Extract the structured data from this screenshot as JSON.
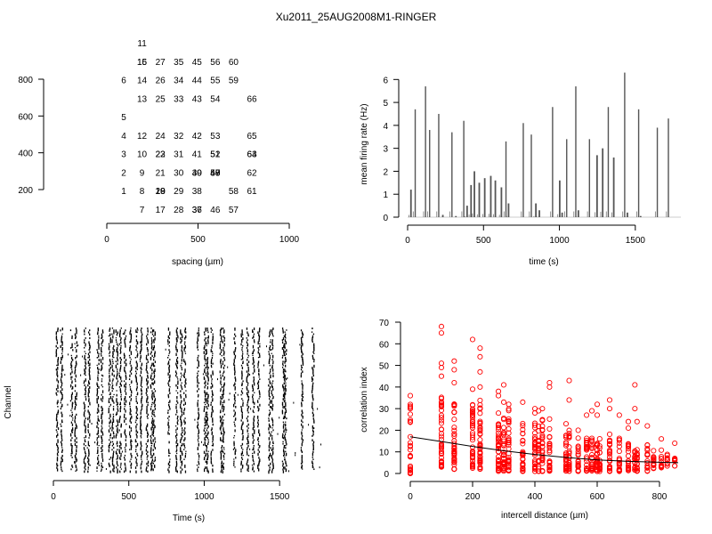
{
  "title": "Xu2011_25AUG2008M1-RINGER",
  "chart_data": [
    {
      "type": "scatter",
      "panel": "electrode-layout",
      "xlabel": "spacing (µm)",
      "ylabel": "",
      "xlim": [
        0,
        1000
      ],
      "ylim": [
        0,
        800
      ],
      "xticks": [
        0,
        500,
        1000
      ],
      "yticks": [
        200,
        400,
        600,
        800
      ],
      "points": [
        {
          "x": 0,
          "y": 800,
          "label": "1"
        },
        {
          "x": 0,
          "y": 700,
          "label": "2"
        },
        {
          "x": 0,
          "y": 600,
          "label": "3"
        },
        {
          "x": 0,
          "y": 500,
          "label": "4"
        },
        {
          "x": 0,
          "y": 400,
          "label": "5"
        },
        {
          "x": 0,
          "y": 200,
          "label": "6"
        },
        {
          "x": 100,
          "y": 900,
          "label": "7"
        },
        {
          "x": 100,
          "y": 800,
          "label": "8"
        },
        {
          "x": 100,
          "y": 700,
          "label": "9"
        },
        {
          "x": 100,
          "y": 600,
          "label": "10"
        },
        {
          "x": 100,
          "y": 0,
          "label": "11"
        },
        {
          "x": 100,
          "y": 500,
          "label": "12"
        },
        {
          "x": 100,
          "y": 300,
          "label": "13"
        },
        {
          "x": 100,
          "y": 200,
          "label": "14"
        },
        {
          "x": 100,
          "y": 100,
          "label": "15"
        },
        {
          "x": 100,
          "y": 100,
          "label": "16"
        },
        {
          "x": 200,
          "y": 900,
          "label": "17"
        },
        {
          "x": 200,
          "y": 800,
          "label": "18"
        },
        {
          "x": 200,
          "y": 800,
          "label": "19"
        },
        {
          "x": 200,
          "y": 800,
          "label": "20"
        },
        {
          "x": 200,
          "y": 700,
          "label": "21"
        },
        {
          "x": 200,
          "y": 600,
          "label": "22"
        },
        {
          "x": 200,
          "y": 600,
          "label": "23"
        },
        {
          "x": 200,
          "y": 500,
          "label": "24"
        },
        {
          "x": 200,
          "y": 300,
          "label": "25"
        },
        {
          "x": 200,
          "y": 200,
          "label": "26"
        },
        {
          "x": 200,
          "y": 100,
          "label": "27"
        },
        {
          "x": 300,
          "y": 900,
          "label": "28"
        },
        {
          "x": 300,
          "y": 800,
          "label": "29"
        },
        {
          "x": 300,
          "y": 700,
          "label": "30"
        },
        {
          "x": 300,
          "y": 600,
          "label": "31"
        },
        {
          "x": 300,
          "y": 500,
          "label": "32"
        },
        {
          "x": 300,
          "y": 300,
          "label": "33"
        },
        {
          "x": 300,
          "y": 200,
          "label": "34"
        },
        {
          "x": 300,
          "y": 100,
          "label": "35"
        },
        {
          "x": 400,
          "y": 900,
          "label": "36"
        },
        {
          "x": 400,
          "y": 900,
          "label": "37"
        },
        {
          "x": 400,
          "y": 800,
          "label": "38"
        },
        {
          "x": 400,
          "y": 700,
          "label": "39"
        },
        {
          "x": 400,
          "y": 700,
          "label": "40"
        },
        {
          "x": 400,
          "y": 600,
          "label": "41"
        },
        {
          "x": 400,
          "y": 500,
          "label": "42"
        },
        {
          "x": 400,
          "y": 300,
          "label": "43"
        },
        {
          "x": 400,
          "y": 200,
          "label": "44"
        },
        {
          "x": 400,
          "y": 100,
          "label": "45"
        },
        {
          "x": 500,
          "y": 900,
          "label": "46"
        },
        {
          "x": 500,
          "y": 700,
          "label": "47"
        },
        {
          "x": 500,
          "y": 700,
          "label": "48"
        },
        {
          "x": 500,
          "y": 700,
          "label": "49"
        },
        {
          "x": 500,
          "y": 700,
          "label": "50"
        },
        {
          "x": 500,
          "y": 600,
          "label": "51"
        },
        {
          "x": 500,
          "y": 600,
          "label": "52"
        },
        {
          "x": 500,
          "y": 500,
          "label": "53"
        },
        {
          "x": 500,
          "y": 300,
          "label": "54"
        },
        {
          "x": 500,
          "y": 200,
          "label": "55"
        },
        {
          "x": 500,
          "y": 100,
          "label": "56"
        },
        {
          "x": 600,
          "y": 900,
          "label": "57"
        },
        {
          "x": 600,
          "y": 800,
          "label": "58"
        },
        {
          "x": 600,
          "y": 200,
          "label": "59"
        },
        {
          "x": 600,
          "y": 100,
          "label": "60"
        },
        {
          "x": 700,
          "y": 800,
          "label": "61"
        },
        {
          "x": 700,
          "y": 700,
          "label": "62"
        },
        {
          "x": 700,
          "y": 600,
          "label": "63"
        },
        {
          "x": 700,
          "y": 600,
          "label": "64"
        },
        {
          "x": 700,
          "y": 500,
          "label": "65"
        },
        {
          "x": 700,
          "y": 300,
          "label": "66"
        }
      ]
    },
    {
      "type": "bar",
      "panel": "firing-rate",
      "xlabel": "time (s)",
      "ylabel": "mean firing rate (Hz)",
      "xlim": [
        0,
        1800
      ],
      "ylim": [
        0,
        6.4
      ],
      "xticks": [
        0,
        500,
        1000,
        1500
      ],
      "yticks": [
        0,
        1,
        2,
        3,
        4,
        5,
        6
      ],
      "x": [
        22,
        50,
        118,
        145,
        205,
        232,
        292,
        318,
        370,
        392,
        418,
        440,
        472,
        508,
        548,
        578,
        618,
        648,
        665,
        762,
        815,
        845,
        868,
        955,
        1002,
        1018,
        1048,
        1108,
        1125,
        1198,
        1248,
        1285,
        1322,
        1358,
        1430,
        1448,
        1522,
        1535,
        1645,
        1718
      ],
      "values": [
        1.2,
        4.7,
        5.7,
        3.8,
        4.5,
        0.1,
        3.7,
        0.05,
        4.2,
        0.5,
        1.4,
        2.0,
        1.5,
        1.7,
        1.8,
        1.6,
        1.3,
        3.3,
        0.6,
        4.1,
        3.6,
        0.6,
        0.3,
        4.8,
        1.6,
        0.2,
        3.4,
        5.7,
        0.3,
        3.4,
        2.7,
        3.0,
        4.8,
        2.6,
        6.3,
        0.2,
        4.7,
        0.05,
        3.9,
        4.3
      ]
    },
    {
      "type": "scatter",
      "panel": "spike-raster",
      "xlabel": "Time (s)",
      "ylabel": "Channel",
      "xlim": [
        0,
        1800
      ],
      "xticks": [
        0,
        500,
        1000,
        1500
      ],
      "burst_times": [
        22,
        50,
        118,
        145,
        205,
        232,
        292,
        318,
        370,
        392,
        418,
        440,
        472,
        508,
        548,
        578,
        618,
        648,
        665,
        762,
        815,
        845,
        868,
        955,
        1002,
        1018,
        1048,
        1108,
        1125,
        1198,
        1248,
        1285,
        1322,
        1358,
        1430,
        1448,
        1522,
        1535,
        1645,
        1718
      ]
    },
    {
      "type": "scatter",
      "panel": "correlation",
      "xlabel": "intercell distance (µm)",
      "ylabel": "correlation index",
      "xlim": [
        0,
        860
      ],
      "ylim": [
        0,
        70
      ],
      "xticks": [
        0,
        200,
        400,
        600,
        800
      ],
      "yticks": [
        0,
        10,
        20,
        30,
        40,
        50,
        60,
        70
      ],
      "point_color": "#ff0000",
      "fit_color": "#000000",
      "fit_curve": [
        [
          0,
          17.0
        ],
        [
          100,
          14.8
        ],
        [
          200,
          12.5
        ],
        [
          300,
          10.5
        ],
        [
          400,
          8.8
        ],
        [
          500,
          7.4
        ],
        [
          600,
          6.3
        ],
        [
          700,
          5.6
        ],
        [
          800,
          5.2
        ],
        [
          860,
          5.0
        ]
      ],
      "columns": [
        {
          "x": 0,
          "low": 0,
          "high": 36,
          "n": 22,
          "outliers": [
            0,
            2,
            24,
            30,
            36
          ]
        },
        {
          "x": 100,
          "low": 3,
          "high": 38,
          "n": 40,
          "outliers": [
            45,
            49,
            51,
            65,
            68
          ]
        },
        {
          "x": 141,
          "low": 2,
          "high": 33,
          "n": 40,
          "outliers": [
            42,
            48,
            52
          ]
        },
        {
          "x": 200,
          "low": 2,
          "high": 32,
          "n": 36,
          "outliers": [
            39,
            62
          ]
        },
        {
          "x": 224,
          "low": 2,
          "high": 34,
          "n": 40,
          "outliers": [
            40,
            47,
            54,
            58
          ]
        },
        {
          "x": 283,
          "low": 1,
          "high": 30,
          "n": 36,
          "outliers": [
            36,
            38
          ]
        },
        {
          "x": 300,
          "low": 1,
          "high": 28,
          "n": 36,
          "outliers": [
            33,
            41
          ]
        },
        {
          "x": 316,
          "low": 1,
          "high": 30,
          "n": 30,
          "outliers": [
            32
          ]
        },
        {
          "x": 361,
          "low": 1,
          "high": 26,
          "n": 30,
          "outliers": [
            33
          ]
        },
        {
          "x": 400,
          "low": 1,
          "high": 24,
          "n": 28,
          "outliers": [
            28,
            30
          ]
        },
        {
          "x": 412,
          "low": 1,
          "high": 22,
          "n": 24,
          "outliers": [
            29
          ]
        },
        {
          "x": 424,
          "low": 1,
          "high": 25,
          "n": 26,
          "outliers": [
            30
          ]
        },
        {
          "x": 447,
          "low": 1,
          "high": 26,
          "n": 28,
          "outliers": [
            40,
            42
          ]
        },
        {
          "x": 500,
          "low": 1,
          "high": 18,
          "n": 26,
          "outliers": [
            23
          ]
        },
        {
          "x": 510,
          "low": 1,
          "high": 20,
          "n": 24,
          "outliers": [
            34,
            43
          ]
        },
        {
          "x": 539,
          "low": 1,
          "high": 17,
          "n": 22,
          "outliers": [
            20
          ]
        },
        {
          "x": 566,
          "low": 1,
          "high": 18,
          "n": 22,
          "outliers": [
            27
          ]
        },
        {
          "x": 583,
          "low": 1,
          "high": 18,
          "n": 22,
          "outliers": [
            29
          ]
        },
        {
          "x": 600,
          "low": 1,
          "high": 18,
          "n": 24,
          "outliers": [
            27,
            32
          ]
        },
        {
          "x": 608,
          "low": 1,
          "high": 17,
          "n": 20,
          "outliers": []
        },
        {
          "x": 640,
          "low": 1,
          "high": 20,
          "n": 22,
          "outliers": [
            30,
            34
          ]
        },
        {
          "x": 671,
          "low": 1,
          "high": 17,
          "n": 20,
          "outliers": [
            27
          ]
        },
        {
          "x": 700,
          "low": 1,
          "high": 16,
          "n": 20,
          "outliers": [
            21,
            24
          ]
        },
        {
          "x": 721,
          "low": 1,
          "high": 14,
          "n": 20,
          "outliers": [
            30,
            41
          ]
        },
        {
          "x": 728,
          "low": 1,
          "high": 12,
          "n": 18,
          "outliers": [
            24
          ]
        },
        {
          "x": 761,
          "low": 1,
          "high": 14,
          "n": 16,
          "outliers": [
            22
          ]
        },
        {
          "x": 781,
          "low": 2,
          "high": 12,
          "n": 14,
          "outliers": []
        },
        {
          "x": 806,
          "low": 2,
          "high": 11,
          "n": 12,
          "outliers": [
            16
          ]
        },
        {
          "x": 825,
          "low": 3,
          "high": 10,
          "n": 10,
          "outliers": []
        },
        {
          "x": 849,
          "low": 3,
          "high": 8,
          "n": 8,
          "outliers": [
            14
          ]
        }
      ]
    }
  ]
}
